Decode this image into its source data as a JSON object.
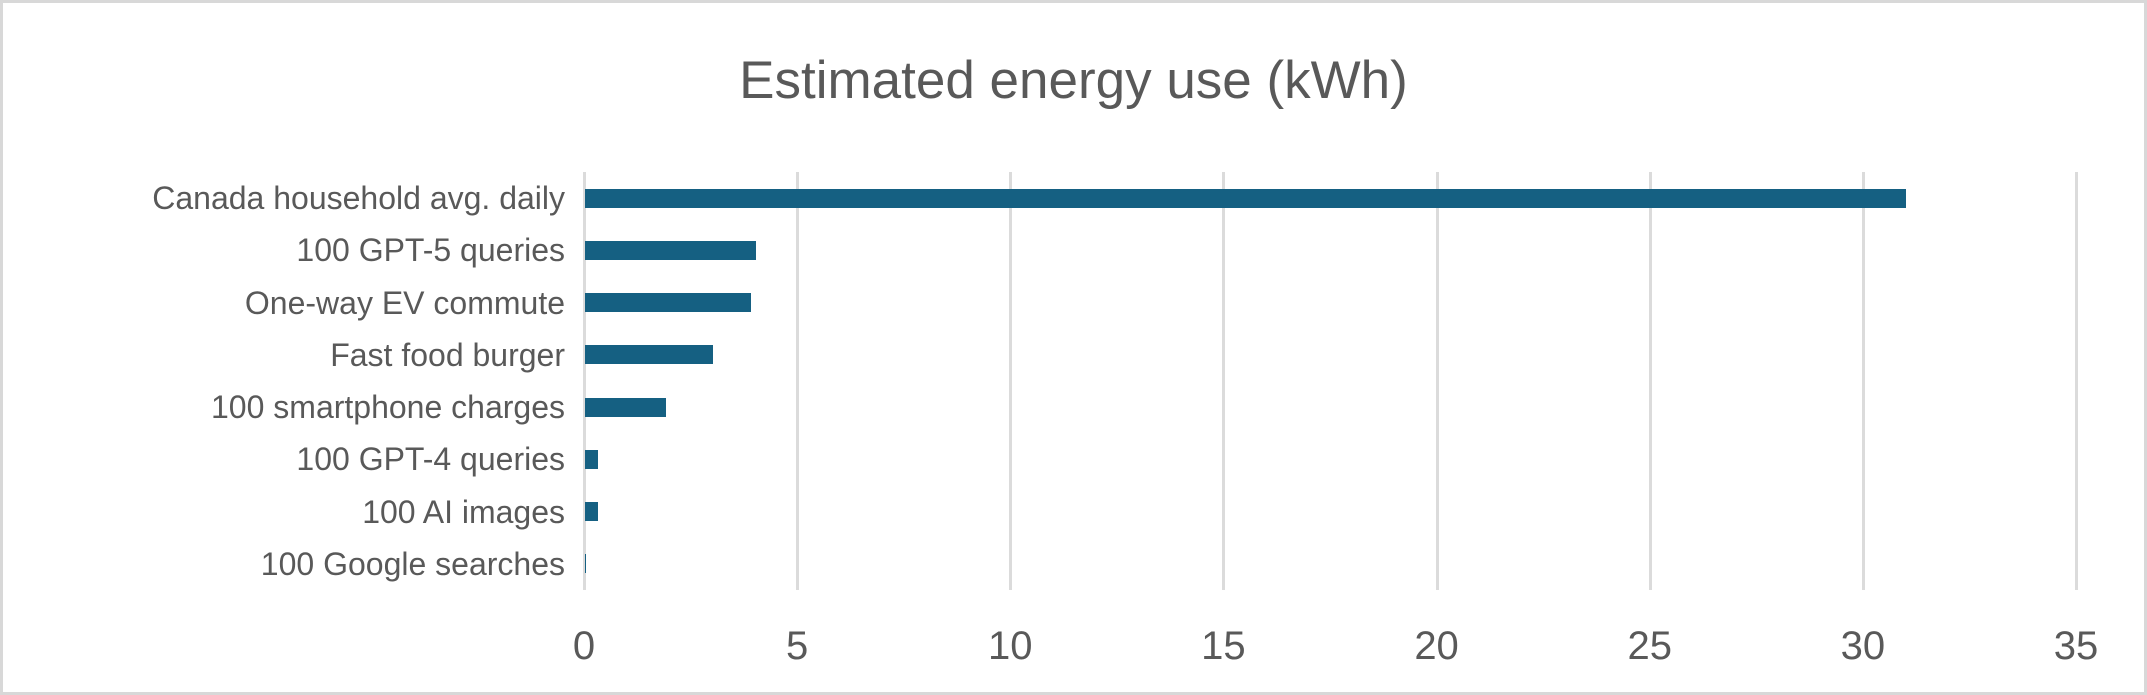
{
  "chart_data": {
    "type": "bar",
    "orientation": "horizontal",
    "title": "Estimated energy use (kWh)",
    "categories": [
      "Canada household avg. daily",
      "100 GPT-5 queries",
      "One-way EV commute",
      "Fast food burger",
      "100 smartphone charges",
      "100 GPT-4 queries",
      "100 AI images",
      "100 Google searches"
    ],
    "values": [
      31,
      4,
      3.9,
      3,
      1.9,
      0.3,
      0.3,
      0.03
    ],
    "xlabel": "",
    "ylabel": "",
    "xlim": [
      0,
      35
    ],
    "xticks": [
      0,
      5,
      10,
      15,
      20,
      25,
      30,
      35
    ],
    "grid": "vertical",
    "legend": "none",
    "colors": {
      "bar": "#156082",
      "gridline": "#dbdbdb",
      "text": "#595959",
      "border": "#d8d8d8",
      "background": "#ffffff"
    }
  }
}
